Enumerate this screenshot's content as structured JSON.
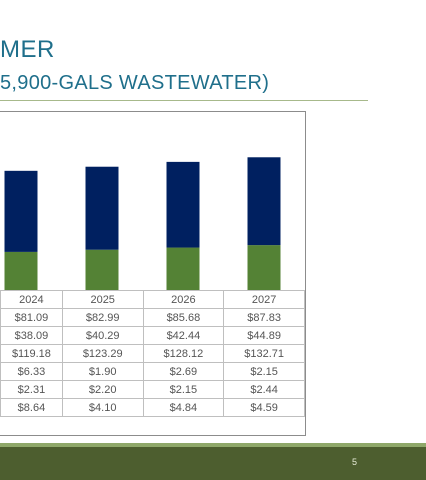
{
  "title_line1": "MER",
  "title_line2": "5,900-GALS WASTEWATER)",
  "page_number": "5",
  "colors": {
    "navy": "#002060",
    "green": "#548235",
    "title": "#1f6f8b"
  },
  "chart_data": {
    "type": "bar",
    "stacked": true,
    "categories": [
      "2024",
      "2025",
      "2026",
      "2027"
    ],
    "series": [
      {
        "values": [
          38.09,
          40.29,
          42.44,
          44.89
        ]
      },
      {
        "values": [
          81.09,
          82.99,
          85.68,
          87.83
        ]
      }
    ],
    "legend": false,
    "grid": false
  },
  "table": {
    "rows": [
      [
        "2024",
        "2025",
        "2026",
        "2027"
      ],
      [
        "$81.09",
        "$82.99",
        "$85.68",
        "$87.83"
      ],
      [
        "$38.09",
        "$40.29",
        "$42.44",
        "$44.89"
      ],
      [
        "$119.18",
        "$123.29",
        "$128.12",
        "$132.71"
      ],
      [
        "$6.33",
        "$1.90",
        "$2.69",
        "$2.15"
      ],
      [
        "$2.31",
        "$2.20",
        "$2.15",
        "$2.44"
      ],
      [
        "$8.64",
        "$4.10",
        "$4.84",
        "$4.59"
      ]
    ]
  }
}
